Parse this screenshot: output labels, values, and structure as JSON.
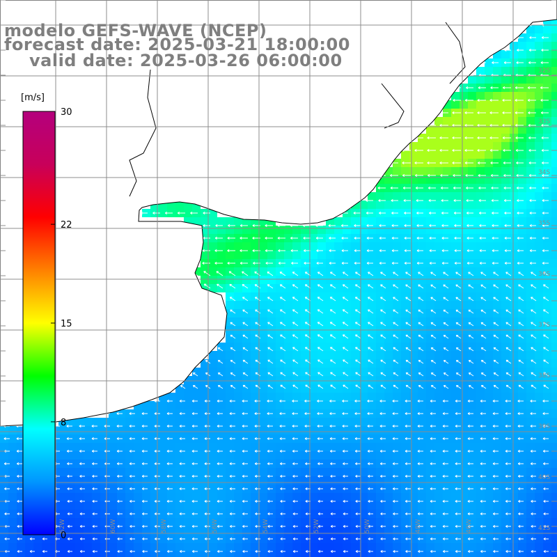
{
  "header": {
    "model": "modelo GEFS-WAVE (NCEP)",
    "forecast_date": "forecast date: 2025-03-21 18:00:00",
    "valid_date": "valid date: 2025-03-26 06:00:00"
  },
  "colorbar": {
    "units": "[m/s]",
    "ticks": [
      {
        "value": 30,
        "label": "30"
      },
      {
        "value": 22,
        "label": "22"
      },
      {
        "value": 15,
        "label": "15"
      },
      {
        "value": 8,
        "label": "8"
      },
      {
        "value": 0,
        "label": "0"
      }
    ],
    "min": 0,
    "max": 30,
    "colors": [
      "#0000ff",
      "#0096ff",
      "#00ffff",
      "#00ff00",
      "#ffff00",
      "#ff8000",
      "#ff0000",
      "#c8005a",
      "#b4007d"
    ]
  },
  "map": {
    "lat_labels": [
      "32S",
      "33S",
      "34S",
      "35S",
      "36S",
      "37S",
      "38S",
      "39S",
      "40S",
      "41S"
    ],
    "lon_labels": [
      "62W",
      "60W",
      "58W",
      "56W",
      "54W",
      "52W",
      "50W",
      "48W",
      "46W"
    ],
    "colors": {
      "land": "#ffffff",
      "coastline": "#000000",
      "gridline": "#8c8c8c",
      "wind_arrow": "#ffffff",
      "title": "#7f7f7f"
    }
  }
}
